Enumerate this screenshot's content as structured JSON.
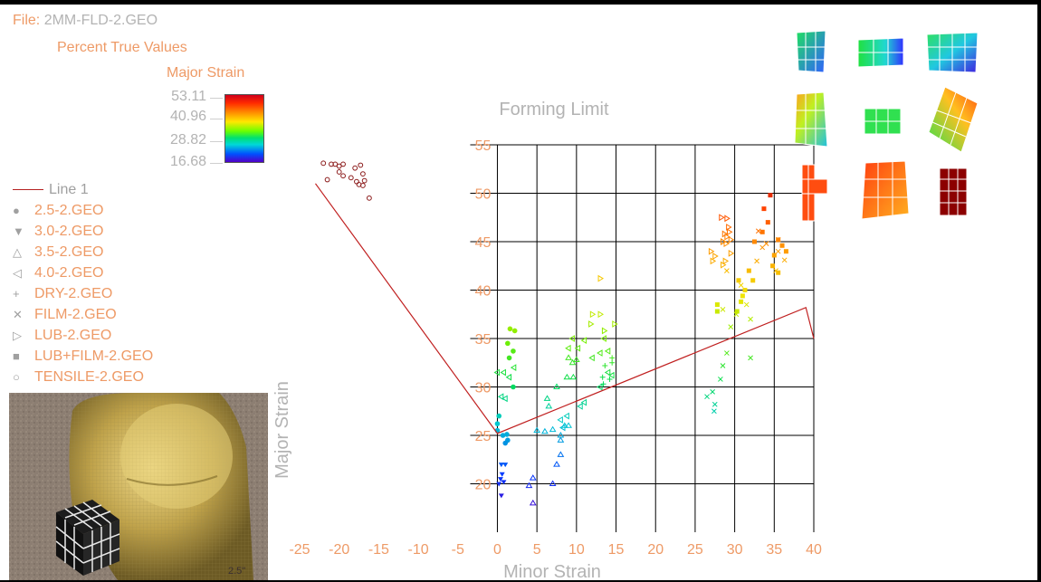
{
  "header": {
    "file_prefix": "File:",
    "file_name": "2MM-FLD-2.GEO",
    "subtitle": "Percent True Values"
  },
  "color_scale": {
    "title": "Major Strain",
    "labels": [
      "53.11",
      "40.96",
      "28.82",
      "16.68"
    ],
    "min": 16.68,
    "max": 53.11
  },
  "legend": {
    "line_label": "Line 1",
    "items": [
      {
        "label": "2.5-2.GEO",
        "symbol": "●"
      },
      {
        "label": "3.0-2.GEO",
        "symbol": "▼"
      },
      {
        "label": "3.5-2.GEO",
        "symbol": "△"
      },
      {
        "label": "4.0-2.GEO",
        "symbol": "◁"
      },
      {
        "label": "DRY-2.GEO",
        "symbol": "+"
      },
      {
        "label": "FILM-2.GEO",
        "symbol": "✕"
      },
      {
        "label": "LUB-2.GEO",
        "symbol": "▷"
      },
      {
        "label": "LUB+FILM-2.GEO",
        "symbol": "■"
      },
      {
        "label": "TENSILE-2.GEO",
        "symbol": "○"
      }
    ]
  },
  "photo": {
    "label": "2.5\""
  },
  "colors": {
    "text_orange": "#ee9a66",
    "text_gray": "#b3b3b3",
    "grid": "#000000",
    "line": "#c02020"
  },
  "chart_data": {
    "type": "scatter",
    "title": "Forming Limit",
    "xlabel": "Minor Strain",
    "ylabel": "Major Strain",
    "xlim": [
      -25,
      40
    ],
    "ylim": [
      15,
      55
    ],
    "xticks": [
      -25,
      -20,
      -15,
      -10,
      -5,
      0,
      5,
      10,
      15,
      20,
      25,
      30,
      35,
      40
    ],
    "yticks": [
      20,
      25,
      30,
      35,
      40,
      45,
      50,
      55
    ],
    "grid": true,
    "forming_limit_line": {
      "name": "Line 1",
      "x": [
        -23,
        0,
        39,
        40
      ],
      "y": [
        51,
        25.2,
        38.2,
        35
      ]
    },
    "series": [
      {
        "symbol": "circle",
        "points": [
          [
            1.6,
            36
          ],
          [
            1.3,
            34.5
          ],
          [
            2.2,
            35.8
          ],
          [
            1.5,
            33
          ],
          [
            2.0,
            33.7
          ],
          [
            2.0,
            30
          ],
          [
            0.2,
            27
          ],
          [
            0,
            26.2
          ],
          [
            0,
            25.5
          ],
          [
            0.7,
            25
          ],
          [
            1.2,
            25.1
          ],
          [
            1.3,
            24.5
          ],
          [
            1.0,
            24.2
          ]
        ]
      },
      {
        "symbol": "triangle-down",
        "points": [
          [
            0.5,
            22
          ],
          [
            1.0,
            22
          ],
          [
            0.4,
            20.5
          ],
          [
            0.2,
            20
          ],
          [
            0.8,
            20.2
          ],
          [
            0.5,
            18.8
          ],
          [
            0.6,
            21
          ]
        ]
      },
      {
        "symbol": "triangle-up",
        "points": [
          [
            9,
            33
          ],
          [
            9.5,
            32.5
          ],
          [
            10,
            32.8
          ],
          [
            8.8,
            31
          ],
          [
            9.6,
            31
          ],
          [
            7.5,
            30
          ],
          [
            6.3,
            28.8
          ],
          [
            6.5,
            28
          ],
          [
            5,
            25.5
          ],
          [
            6,
            25.4
          ],
          [
            7,
            25.6
          ],
          [
            8,
            25
          ],
          [
            8.5,
            26
          ],
          [
            8,
            24.5
          ],
          [
            9,
            26
          ],
          [
            8,
            23
          ],
          [
            7.5,
            22
          ],
          [
            7.0,
            20
          ],
          [
            4.5,
            20.6
          ],
          [
            4.0,
            19.8
          ],
          [
            4.5,
            18
          ]
        ]
      },
      {
        "symbol": "triangle-left",
        "points": [
          [
            0,
            31.5
          ],
          [
            0.8,
            31.5
          ],
          [
            1.5,
            31
          ],
          [
            0.5,
            29
          ],
          [
            1.0,
            28.8
          ],
          [
            2.1,
            32
          ],
          [
            9,
            34
          ],
          [
            9.5,
            35
          ],
          [
            10.2,
            34
          ],
          [
            11,
            34.8
          ],
          [
            13.5,
            35
          ],
          [
            12,
            33
          ],
          [
            13,
            33.5
          ],
          [
            14,
            33.7
          ],
          [
            13,
            30
          ],
          [
            14,
            31.5
          ],
          [
            14.5,
            31.2
          ],
          [
            10.5,
            28
          ],
          [
            11,
            28.4
          ],
          [
            8.8,
            27
          ],
          [
            8,
            26.6
          ],
          [
            8.3,
            25.8
          ]
        ]
      },
      {
        "symbol": "plus",
        "points": [
          [
            13.3,
            31
          ],
          [
            13.6,
            32.2
          ],
          [
            14.5,
            32.5
          ],
          [
            13.4,
            30.3
          ],
          [
            14.2,
            30.8
          ],
          [
            14.5,
            33
          ]
        ]
      },
      {
        "symbol": "x",
        "points": [
          [
            26.5,
            29
          ],
          [
            27.5,
            28.2
          ],
          [
            27.2,
            29.5
          ],
          [
            28.2,
            30.8
          ],
          [
            28.5,
            32.2
          ],
          [
            29,
            33.5
          ],
          [
            29.5,
            36.2
          ],
          [
            30.8,
            40.5
          ],
          [
            31.5,
            38.5
          ],
          [
            32,
            37
          ],
          [
            30.2,
            37.5
          ],
          [
            28.5,
            38
          ],
          [
            32,
            33
          ],
          [
            29,
            42
          ],
          [
            32.8,
            43
          ],
          [
            33.5,
            44.4
          ],
          [
            34,
            44.8
          ],
          [
            35.2,
            42
          ],
          [
            36.3,
            43.1
          ],
          [
            35.5,
            44
          ],
          [
            35.5,
            45.2
          ],
          [
            33,
            46.1
          ],
          [
            27.4,
            27.5
          ]
        ]
      },
      {
        "symbol": "triangle-right",
        "points": [
          [
            27,
            44
          ],
          [
            27.5,
            43.5
          ],
          [
            27.2,
            43
          ],
          [
            28.5,
            42.6
          ],
          [
            28.8,
            43
          ],
          [
            29.5,
            43.8
          ],
          [
            28.5,
            45
          ],
          [
            29,
            45.5
          ],
          [
            29.3,
            46
          ],
          [
            29.2,
            46.5
          ],
          [
            28.3,
            47.5
          ],
          [
            29,
            47.4
          ],
          [
            28.7,
            45.8
          ],
          [
            28.5,
            45
          ],
          [
            28.9,
            44.8
          ],
          [
            29.5,
            45.2
          ],
          [
            13,
            41.2
          ],
          [
            14.8,
            36.5
          ],
          [
            13.5,
            35.8
          ],
          [
            13,
            37.5
          ],
          [
            12,
            37.5
          ],
          [
            11.8,
            36.5
          ]
        ]
      },
      {
        "symbol": "square",
        "points": [
          [
            34.5,
            49.8
          ],
          [
            33.7,
            48.4
          ],
          [
            34.2,
            47
          ],
          [
            33.5,
            46
          ],
          [
            32.5,
            45
          ],
          [
            35.5,
            45.2
          ],
          [
            36,
            44.6
          ],
          [
            36.5,
            44
          ],
          [
            35,
            43.6
          ],
          [
            34.8,
            42.5
          ],
          [
            35.5,
            41.8
          ],
          [
            30.5,
            41
          ],
          [
            31.8,
            42
          ],
          [
            32.3,
            41
          ],
          [
            31,
            39.4
          ],
          [
            30.8,
            38.8
          ],
          [
            30.3,
            37.8
          ],
          [
            31.3,
            40
          ],
          [
            27.8,
            38.5
          ],
          [
            27.8,
            37.8
          ]
        ]
      },
      {
        "symbol": "circle-open",
        "points": [
          [
            -22,
            53.1
          ],
          [
            -21,
            53
          ],
          [
            -20.5,
            53
          ],
          [
            -20,
            52.8
          ],
          [
            -19.5,
            53
          ],
          [
            -21.5,
            51.4
          ],
          [
            -20,
            52.2
          ],
          [
            -19.5,
            51.8
          ],
          [
            -18,
            52.6
          ],
          [
            -17,
            52
          ],
          [
            -17.3,
            52.9
          ],
          [
            -16.8,
            51.3
          ],
          [
            -17,
            50.8
          ],
          [
            -17.8,
            51.2
          ],
          [
            -16.2,
            49.5
          ],
          [
            -18.5,
            51.6
          ],
          [
            -17.5,
            50.9
          ]
        ]
      }
    ]
  }
}
